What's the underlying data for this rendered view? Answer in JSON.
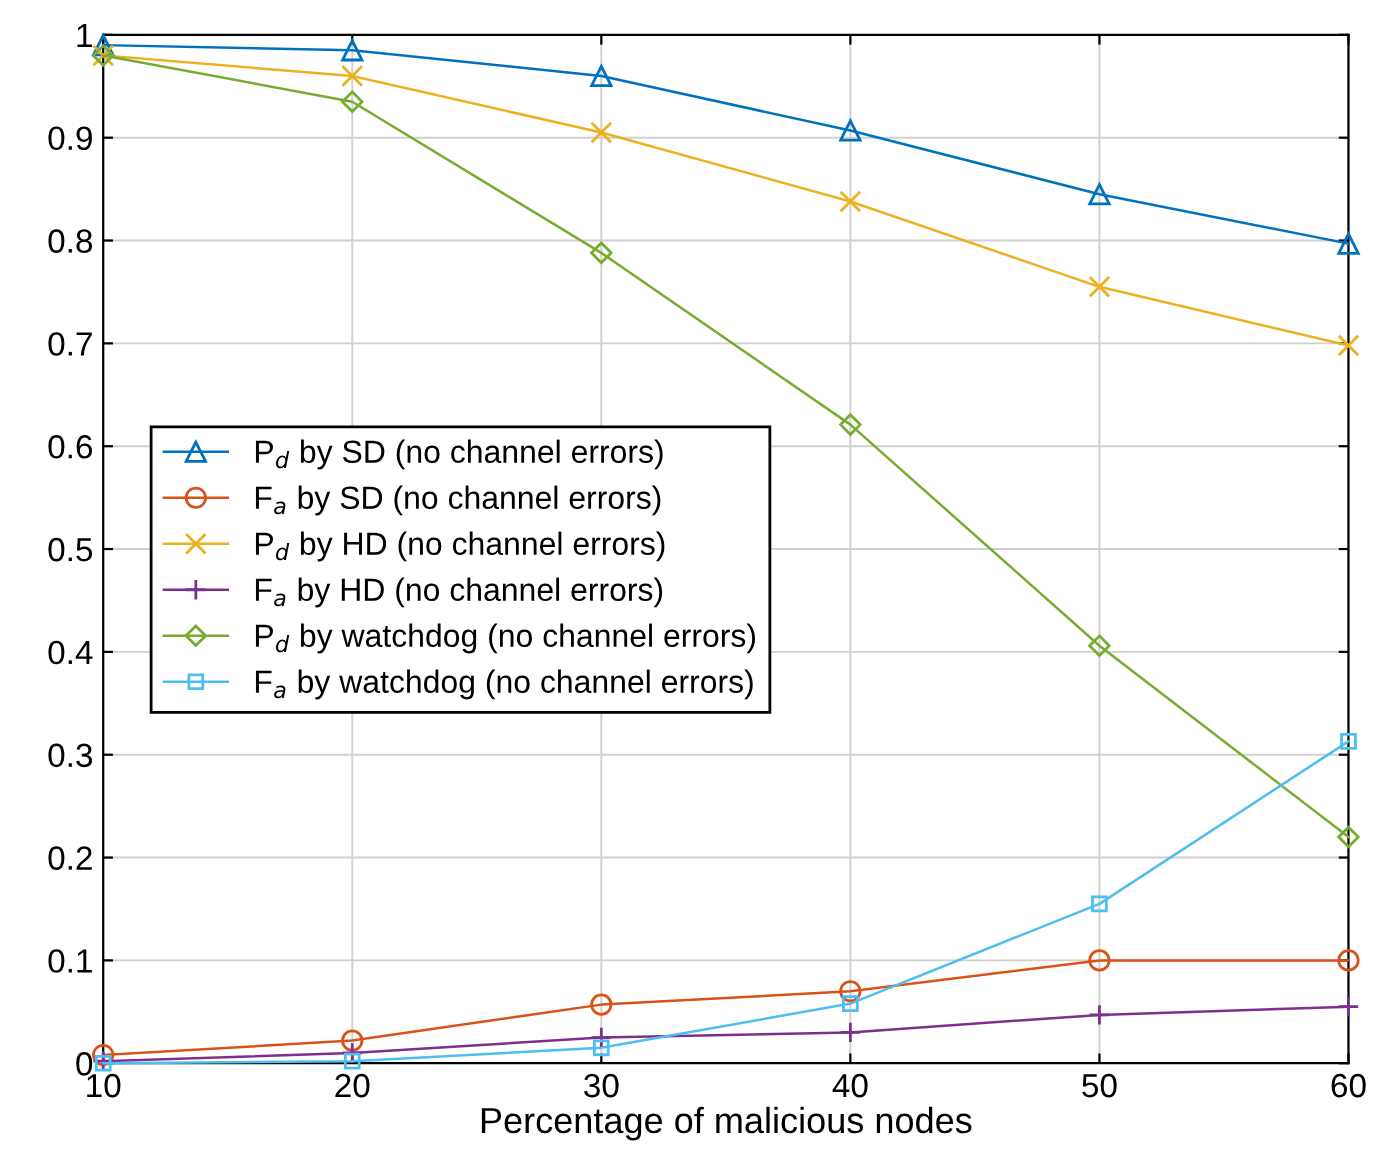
{
  "chart_data": {
    "type": "line",
    "xlabel": "Percentage of malicious nodes",
    "x": [
      10,
      20,
      30,
      40,
      50,
      60
    ],
    "xlim": [
      10,
      60
    ],
    "xticks": [
      10,
      20,
      30,
      40,
      50,
      60
    ],
    "ylim": [
      0,
      1
    ],
    "yticks": [
      0,
      0.1,
      0.2,
      0.3,
      0.4,
      0.5,
      0.6,
      0.7,
      0.8,
      0.9,
      1
    ],
    "grid": true,
    "legend": "left",
    "line_style": "solid",
    "series": [
      {
        "name": "P$_{d}$ by SD (no channel errors)",
        "color": "#0072bd",
        "marker": "triangle",
        "values": [
          0.99,
          0.985,
          0.96,
          0.907,
          0.845,
          0.797
        ]
      },
      {
        "name": "F$_{a}$ by SD (no channel errors)",
        "color": "#d95319",
        "marker": "circle",
        "values": [
          0.008,
          0.022,
          0.057,
          0.07,
          0.1,
          0.1
        ]
      },
      {
        "name": "P$_{d}$ by HD (no channel errors)",
        "color": "#edb120",
        "marker": "cross",
        "values": [
          0.98,
          0.96,
          0.905,
          0.838,
          0.755,
          0.698
        ]
      },
      {
        "name": "F$_{a}$ by HD (no channel errors)",
        "color": "#7e2f8e",
        "marker": "plus",
        "values": [
          0.002,
          0.01,
          0.025,
          0.03,
          0.047,
          0.055
        ]
      },
      {
        "name": "P$_{d}$ by watchdog (no channel errors)",
        "color": "#77ac30",
        "marker": "diamond",
        "values": [
          0.98,
          0.935,
          0.788,
          0.621,
          0.406,
          0.22
        ]
      },
      {
        "name": "F$_{a}$ by watchdog (no channel errors)",
        "color": "#4dbeee",
        "marker": "square",
        "values": [
          0.0,
          0.002,
          0.015,
          0.058,
          0.155,
          0.313
        ]
      }
    ]
  }
}
